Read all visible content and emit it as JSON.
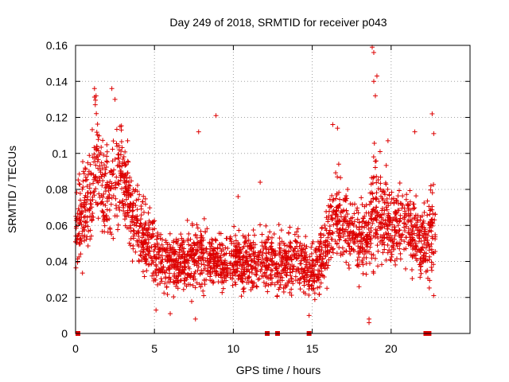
{
  "chart_data": {
    "type": "scatter",
    "title": "Day 249 of 2018, SRMTID for receiver p043",
    "xlabel": "GPS time / hours",
    "ylabel": "SRMTID / TECUs",
    "xlim": [
      0,
      25
    ],
    "ylim": [
      0,
      0.16
    ],
    "x_ticks": [
      0,
      5,
      10,
      15,
      20
    ],
    "y_ticks": [
      0,
      0.02,
      0.04,
      0.06,
      0.08,
      0.1,
      0.12,
      0.14,
      0.16
    ],
    "x_tick_labels": [
      "0",
      "5",
      "10",
      "15",
      "20"
    ],
    "y_tick_labels": [
      "0",
      "0.02",
      "0.04",
      "0.06",
      "0.08",
      "0.1",
      "0.12",
      "0.14",
      "0.16"
    ],
    "grid": true,
    "marker": "+",
    "marker_color": "#dd0000",
    "baseline_squares_x": [
      0.15,
      12.15,
      12.8,
      14.8,
      22.2,
      22.4
    ],
    "envelope_note": "Dense scatter; points summarized as median envelope (hour, center value, spread) read from figure",
    "envelope": [
      [
        0.0,
        0.058,
        0.02
      ],
      [
        0.5,
        0.068,
        0.025
      ],
      [
        1.0,
        0.072,
        0.03
      ],
      [
        1.3,
        0.1,
        0.03
      ],
      [
        1.8,
        0.075,
        0.025
      ],
      [
        2.3,
        0.082,
        0.03
      ],
      [
        2.8,
        0.09,
        0.025
      ],
      [
        3.2,
        0.08,
        0.02
      ],
      [
        3.6,
        0.065,
        0.02
      ],
      [
        4.0,
        0.058,
        0.018
      ],
      [
        4.5,
        0.052,
        0.018
      ],
      [
        5.0,
        0.045,
        0.016
      ],
      [
        5.5,
        0.042,
        0.016
      ],
      [
        6.0,
        0.04,
        0.015
      ],
      [
        6.5,
        0.04,
        0.015
      ],
      [
        7.0,
        0.041,
        0.015
      ],
      [
        7.5,
        0.042,
        0.016
      ],
      [
        8.0,
        0.045,
        0.016
      ],
      [
        8.5,
        0.04,
        0.014
      ],
      [
        9.0,
        0.04,
        0.014
      ],
      [
        9.5,
        0.038,
        0.014
      ],
      [
        10.0,
        0.042,
        0.015
      ],
      [
        10.5,
        0.04,
        0.014
      ],
      [
        11.0,
        0.04,
        0.014
      ],
      [
        11.5,
        0.042,
        0.015
      ],
      [
        12.0,
        0.043,
        0.015
      ],
      [
        12.5,
        0.04,
        0.015
      ],
      [
        13.0,
        0.038,
        0.015
      ],
      [
        13.5,
        0.04,
        0.014
      ],
      [
        14.0,
        0.042,
        0.015
      ],
      [
        14.5,
        0.036,
        0.014
      ],
      [
        15.0,
        0.034,
        0.013
      ],
      [
        15.5,
        0.04,
        0.015
      ],
      [
        16.0,
        0.055,
        0.02
      ],
      [
        16.5,
        0.065,
        0.022
      ],
      [
        17.0,
        0.062,
        0.02
      ],
      [
        17.5,
        0.055,
        0.018
      ],
      [
        18.0,
        0.05,
        0.018
      ],
      [
        18.5,
        0.052,
        0.02
      ],
      [
        19.0,
        0.07,
        0.028
      ],
      [
        19.5,
        0.065,
        0.022
      ],
      [
        20.0,
        0.058,
        0.02
      ],
      [
        20.5,
        0.062,
        0.02
      ],
      [
        21.0,
        0.06,
        0.02
      ],
      [
        21.5,
        0.055,
        0.018
      ],
      [
        22.0,
        0.05,
        0.018
      ],
      [
        22.5,
        0.06,
        0.025
      ],
      [
        22.8,
        0.055,
        0.02
      ]
    ],
    "outliers": [
      [
        1.2,
        0.136
      ],
      [
        1.3,
        0.132
      ],
      [
        1.25,
        0.127
      ],
      [
        2.3,
        0.136
      ],
      [
        2.5,
        0.13
      ],
      [
        2.9,
        0.113
      ],
      [
        3.3,
        0.107
      ],
      [
        7.8,
        0.112
      ],
      [
        8.9,
        0.121
      ],
      [
        10.3,
        0.076
      ],
      [
        11.7,
        0.084
      ],
      [
        16.3,
        0.116
      ],
      [
        16.6,
        0.114
      ],
      [
        18.8,
        0.159
      ],
      [
        18.9,
        0.156
      ],
      [
        18.9,
        0.14
      ],
      [
        19.1,
        0.143
      ],
      [
        19.0,
        0.132
      ],
      [
        19.3,
        0.101
      ],
      [
        19.8,
        0.107
      ],
      [
        21.5,
        0.112
      ],
      [
        22.6,
        0.122
      ],
      [
        22.7,
        0.111
      ],
      [
        7.6,
        0.008
      ],
      [
        18.6,
        0.008
      ],
      [
        18.6,
        0.006
      ],
      [
        14.8,
        0.01
      ],
      [
        22.7,
        0.021
      ],
      [
        5.1,
        0.013
      ],
      [
        6.0,
        0.011
      ]
    ]
  }
}
